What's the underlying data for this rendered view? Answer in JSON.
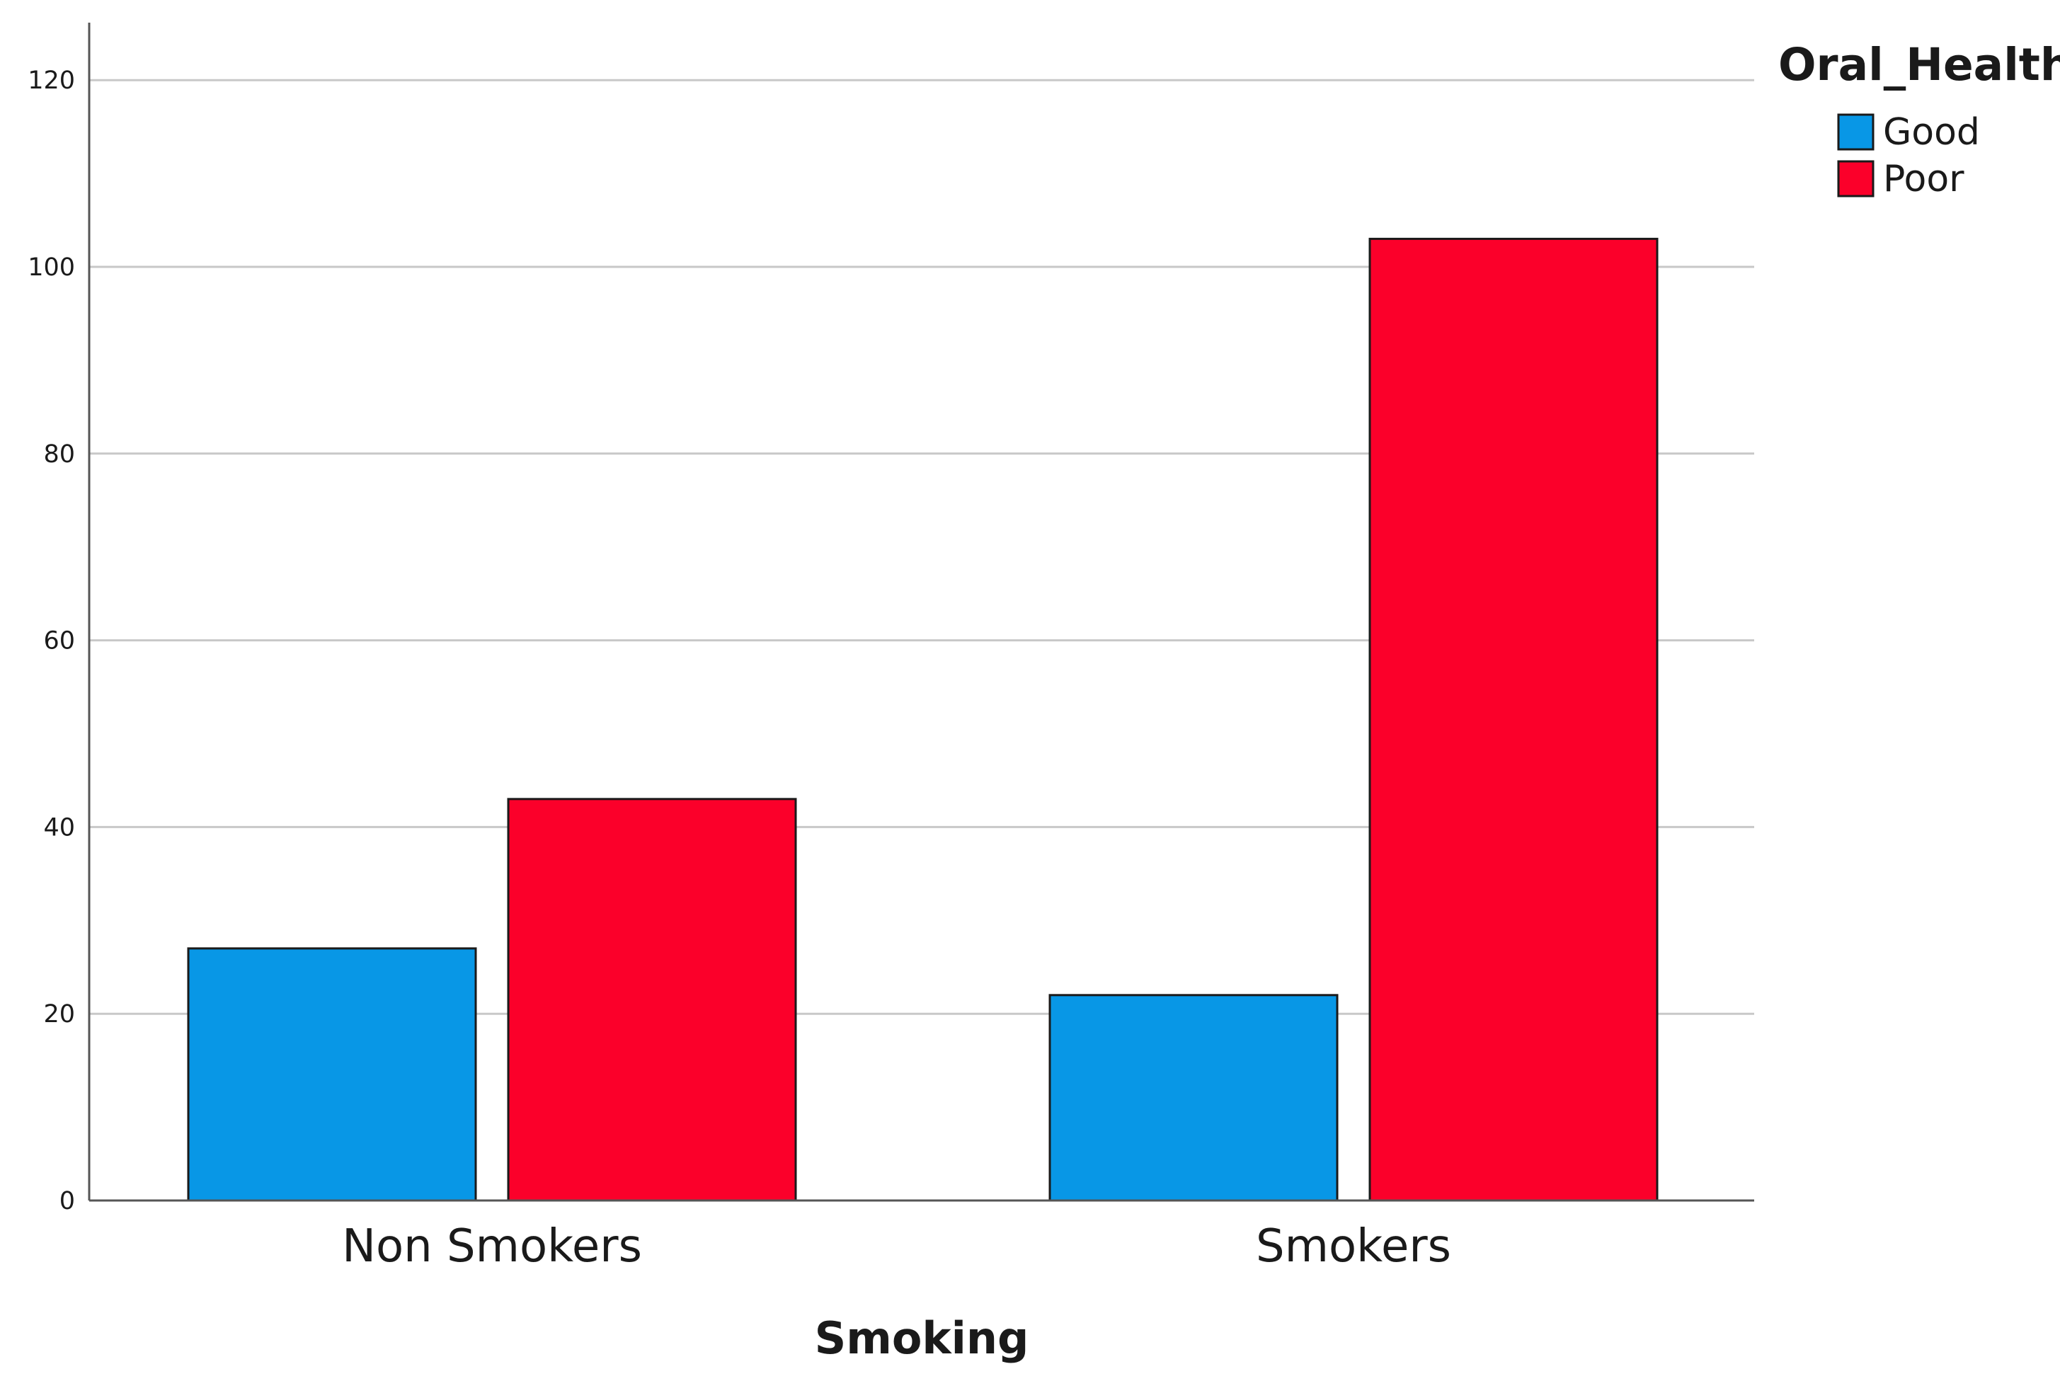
{
  "chart_data": {
    "type": "bar",
    "categories": [
      "Non Smokers",
      "Smokers"
    ],
    "series": [
      {
        "name": "Good",
        "values": [
          27,
          22
        ],
        "color": "#0897E6"
      },
      {
        "name": "Poor",
        "values": [
          43,
          103
        ],
        "color": "#FB002A"
      }
    ],
    "xlabel": "Smoking",
    "ylabel": "",
    "ylim": [
      0,
      125
    ],
    "yticks": [
      0,
      20,
      40,
      60,
      80,
      100,
      120
    ],
    "grid": true,
    "legend": {
      "title": "Oral_Health",
      "placement": "top-right"
    }
  }
}
